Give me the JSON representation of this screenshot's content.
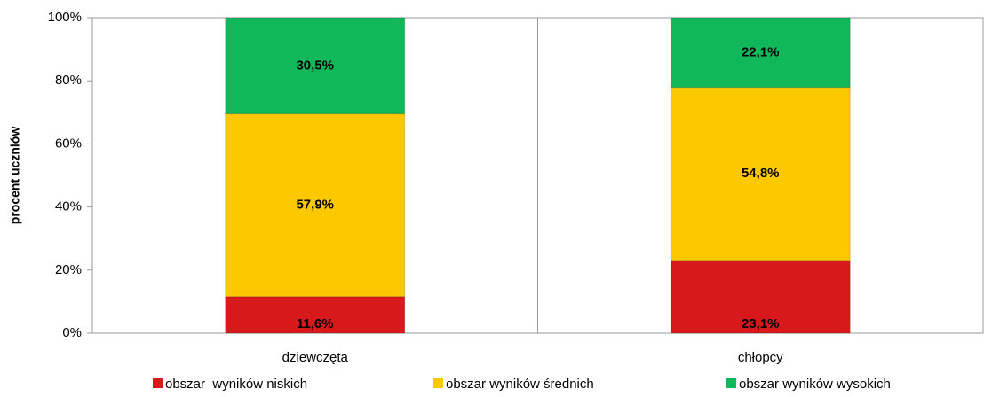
{
  "chart_data": {
    "type": "stacked_bar",
    "y_label": "procent uczniów",
    "categories": [
      "dziewczęta",
      "chłopcy"
    ],
    "series": [
      {
        "name": "obszar  wyników niskich",
        "color": "#d7191c",
        "values": [
          11.6,
          23.1
        ],
        "value_labels": [
          "11,6%",
          "23,1%"
        ]
      },
      {
        "name": "obszar wyników średnich",
        "color": "#fcc800",
        "values": [
          57.9,
          54.8
        ],
        "value_labels": [
          "57,9%",
          "54,8%"
        ]
      },
      {
        "name": "obszar wyników wysokich",
        "color": "#10b85a",
        "values": [
          30.5,
          22.1
        ],
        "value_labels": [
          "30,5%",
          "22,1%"
        ]
      }
    ],
    "ylim": [
      0,
      100
    ],
    "yticks": [
      {
        "value": 0,
        "label": "0%"
      },
      {
        "value": 20,
        "label": "20%"
      },
      {
        "value": 40,
        "label": "40%"
      },
      {
        "value": 60,
        "label": "60%"
      },
      {
        "value": 80,
        "label": "80%"
      },
      {
        "value": 100,
        "label": "100%"
      }
    ],
    "legend": "bottom"
  }
}
